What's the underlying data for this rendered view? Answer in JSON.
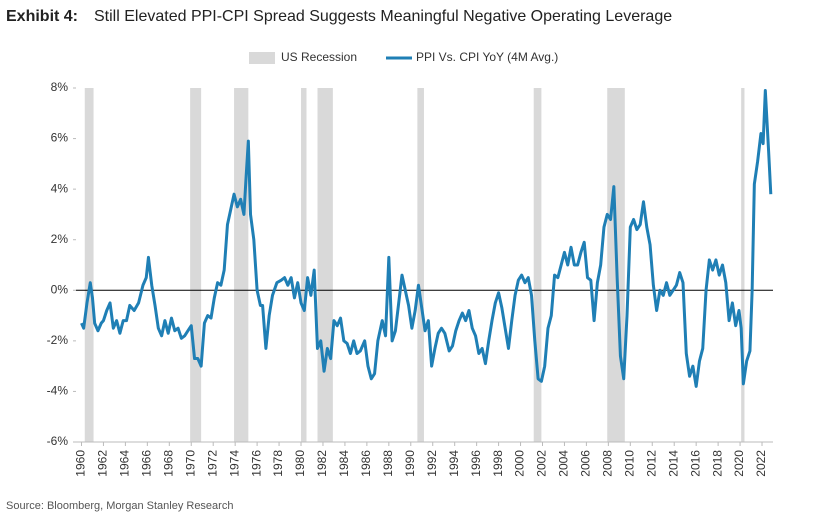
{
  "chart_data": {
    "type": "line",
    "title_label": "Exhibit 4:",
    "title": "Still Elevated PPI-CPI Spread Suggests Meaningful Negative Operating Leverage",
    "source": "Source: Bloomberg, Morgan Stanley Research",
    "recession_label": "US Recession",
    "recession_color": "#d9d9d9",
    "recessions": [
      {
        "start": 1960.3,
        "end": 1961.1
      },
      {
        "start": 1969.9,
        "end": 1970.9
      },
      {
        "start": 1973.9,
        "end": 1975.2
      },
      {
        "start": 1980.0,
        "end": 1980.5
      },
      {
        "start": 1981.5,
        "end": 1982.9
      },
      {
        "start": 1990.6,
        "end": 1991.2
      },
      {
        "start": 2001.2,
        "end": 2001.9
      },
      {
        "start": 2007.9,
        "end": 2009.5
      },
      {
        "start": 2020.1,
        "end": 2020.4
      }
    ],
    "x": [
      1960.0,
      1960.2,
      1960.5,
      1960.8,
      1961.0,
      1961.2,
      1961.5,
      1961.8,
      1962.0,
      1962.3,
      1962.6,
      1962.9,
      1963.2,
      1963.5,
      1963.8,
      1964.1,
      1964.4,
      1964.8,
      1965.2,
      1965.6,
      1965.9,
      1966.1,
      1966.4,
      1966.7,
      1967.0,
      1967.3,
      1967.6,
      1967.9,
      1968.2,
      1968.5,
      1968.8,
      1969.1,
      1969.4,
      1969.7,
      1970.0,
      1970.3,
      1970.6,
      1970.9,
      1971.2,
      1971.5,
      1971.8,
      1972.1,
      1972.4,
      1972.7,
      1973.0,
      1973.3,
      1973.6,
      1973.9,
      1974.2,
      1974.5,
      1974.8,
      1975.0,
      1975.2,
      1975.4,
      1975.7,
      1976.0,
      1976.3,
      1976.5,
      1976.8,
      1977.1,
      1977.4,
      1977.8,
      1978.2,
      1978.5,
      1978.8,
      1979.1,
      1979.4,
      1979.7,
      1980.0,
      1980.3,
      1980.6,
      1980.9,
      1981.2,
      1981.5,
      1981.8,
      1982.1,
      1982.4,
      1982.7,
      1983.0,
      1983.3,
      1983.6,
      1983.9,
      1984.2,
      1984.5,
      1984.8,
      1985.1,
      1985.4,
      1985.8,
      1986.1,
      1986.4,
      1986.7,
      1987.0,
      1987.4,
      1987.7,
      1988.0,
      1988.3,
      1988.6,
      1988.9,
      1989.2,
      1989.5,
      1989.8,
      1990.1,
      1990.4,
      1990.7,
      1991.0,
      1991.3,
      1991.6,
      1991.9,
      1992.2,
      1992.5,
      1992.8,
      1993.1,
      1993.5,
      1993.8,
      1994.1,
      1994.4,
      1994.7,
      1995.0,
      1995.3,
      1995.6,
      1995.9,
      1996.2,
      1996.5,
      1996.8,
      1997.1,
      1997.4,
      1997.7,
      1998.0,
      1998.3,
      1998.6,
      1998.9,
      1999.2,
      1999.5,
      1999.8,
      2000.1,
      2000.4,
      2000.7,
      2001.0,
      2001.3,
      2001.6,
      2001.9,
      2002.2,
      2002.5,
      2002.8,
      2003.1,
      2003.4,
      2003.7,
      2004.0,
      2004.3,
      2004.6,
      2004.9,
      2005.2,
      2005.5,
      2005.8,
      2006.1,
      2006.4,
      2006.7,
      2007.0,
      2007.3,
      2007.6,
      2007.9,
      2008.2,
      2008.5,
      2008.8,
      2009.1,
      2009.4,
      2009.7,
      2010.0,
      2010.3,
      2010.6,
      2010.9,
      2011.2,
      2011.5,
      2011.8,
      2012.1,
      2012.4,
      2012.7,
      2013.0,
      2013.3,
      2013.6,
      2013.9,
      2014.2,
      2014.5,
      2014.8,
      2015.1,
      2015.4,
      2015.7,
      2016.0,
      2016.3,
      2016.6,
      2016.9,
      2017.2,
      2017.5,
      2017.8,
      2018.1,
      2018.4,
      2018.7,
      2019.0,
      2019.3,
      2019.6,
      2019.9,
      2020.1,
      2020.3,
      2020.6,
      2020.9,
      2021.1,
      2021.3,
      2021.6,
      2021.9,
      2022.1,
      2022.3,
      2022.6,
      2022.8
    ],
    "series": [
      {
        "name": "PPI Vs. CPI YoY (4M Avg.)",
        "color": "#1f7fb5",
        "values": [
          -1.3,
          -1.5,
          -0.5,
          0.3,
          -0.3,
          -1.3,
          -1.6,
          -1.3,
          -1.2,
          -0.8,
          -0.5,
          -1.5,
          -1.2,
          -1.7,
          -1.2,
          -1.2,
          -0.6,
          -0.8,
          -0.5,
          0.2,
          0.5,
          1.3,
          0.2,
          -0.6,
          -1.5,
          -1.8,
          -1.2,
          -1.7,
          -1.1,
          -1.6,
          -1.5,
          -1.9,
          -1.8,
          -1.6,
          -1.4,
          -2.7,
          -2.7,
          -3.0,
          -1.3,
          -1.0,
          -1.1,
          -0.3,
          0.3,
          0.2,
          0.8,
          2.6,
          3.2,
          3.8,
          3.3,
          3.6,
          3.0,
          4.5,
          5.9,
          3.0,
          2.0,
          0.0,
          -0.6,
          -0.6,
          -2.3,
          -1.0,
          -0.2,
          0.3,
          0.4,
          0.5,
          0.2,
          0.5,
          -0.3,
          0.3,
          -0.5,
          -0.8,
          0.5,
          -0.2,
          0.8,
          -2.3,
          -2.0,
          -3.2,
          -2.3,
          -2.7,
          -1.2,
          -1.4,
          -1.1,
          -2.0,
          -2.1,
          -2.5,
          -2.0,
          -2.5,
          -2.4,
          -2.0,
          -3.0,
          -3.5,
          -3.3,
          -2.0,
          -1.2,
          -1.8,
          1.3,
          -2.0,
          -1.6,
          -0.5,
          0.6,
          0.0,
          -0.6,
          -1.5,
          -0.8,
          0.2,
          -0.7,
          -1.6,
          -1.2,
          -3.0,
          -2.3,
          -1.7,
          -1.5,
          -1.7,
          -2.4,
          -2.2,
          -1.6,
          -1.2,
          -0.9,
          -1.2,
          -0.8,
          -1.5,
          -1.8,
          -2.5,
          -2.3,
          -2.9,
          -2.0,
          -1.2,
          -0.5,
          -0.1,
          -0.7,
          -1.5,
          -2.3,
          -1.2,
          -0.2,
          0.4,
          0.6,
          0.3,
          0.5,
          -0.2,
          -2.0,
          -3.5,
          -3.6,
          -3.0,
          -1.5,
          -1.0,
          0.6,
          0.5,
          1.0,
          1.5,
          1.0,
          1.7,
          1.0,
          1.0,
          1.5,
          1.9,
          0.5,
          0.4,
          -1.2,
          0.3,
          1.0,
          2.5,
          3.0,
          2.8,
          4.1,
          0.5,
          -2.6,
          -3.5,
          -1.0,
          2.5,
          2.8,
          2.4,
          2.6,
          3.5,
          2.5,
          1.8,
          0.2,
          -0.8,
          0.0,
          -0.2,
          0.3,
          -0.2,
          0.0,
          0.2,
          0.7,
          0.3,
          -2.5,
          -3.4,
          -3.0,
          -3.8,
          -2.8,
          -2.3,
          0.0,
          1.2,
          0.8,
          1.2,
          0.6,
          1.0,
          0.3,
          -1.2,
          -0.5,
          -1.4,
          -0.8,
          -1.5,
          -3.7,
          -2.8,
          -2.4,
          0.0,
          4.2,
          5.1,
          6.2,
          5.8,
          7.9,
          5.5,
          3.8
        ]
      }
    ],
    "xlim": [
      1959.5,
      2023
    ],
    "xticks": [
      1960,
      1962,
      1964,
      1966,
      1968,
      1970,
      1972,
      1974,
      1976,
      1978,
      1980,
      1982,
      1984,
      1986,
      1988,
      1990,
      1992,
      1994,
      1996,
      1998,
      2000,
      2002,
      2004,
      2006,
      2008,
      2010,
      2012,
      2014,
      2016,
      2018,
      2020,
      2022
    ],
    "ylim": [
      -6,
      8
    ],
    "yticks": [
      {
        "value": -6,
        "label": "-6%"
      },
      {
        "value": -4,
        "label": "-4%"
      },
      {
        "value": -2,
        "label": "-2%"
      },
      {
        "value": 0,
        "label": "0%"
      },
      {
        "value": 2,
        "label": "2%"
      },
      {
        "value": 4,
        "label": "4%"
      },
      {
        "value": 6,
        "label": "6%"
      },
      {
        "value": 8,
        "label": "8%"
      }
    ]
  }
}
